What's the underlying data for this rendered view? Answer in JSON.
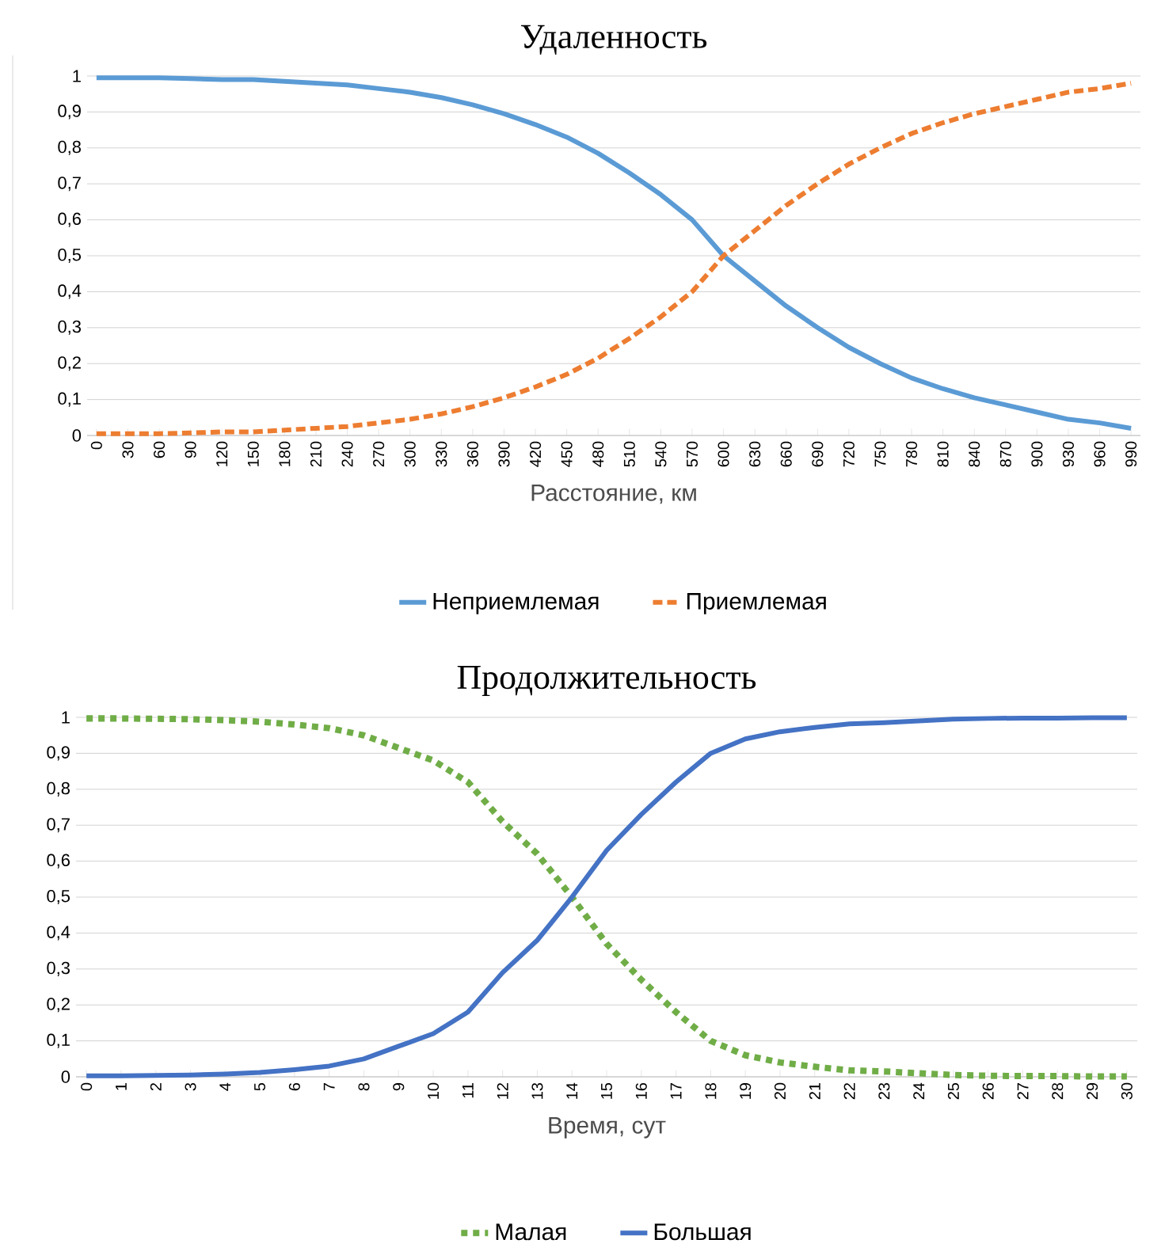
{
  "chart_data": [
    {
      "type": "line",
      "title": "Удаленность",
      "xlabel": "Расстояние, км",
      "categories": [
        "0",
        "30",
        "60",
        "90",
        "120",
        "150",
        "180",
        "210",
        "240",
        "270",
        "300",
        "330",
        "360",
        "390",
        "420",
        "450",
        "480",
        "510",
        "540",
        "570",
        "600",
        "630",
        "660",
        "690",
        "720",
        "750",
        "780",
        "810",
        "840",
        "870",
        "900",
        "930",
        "960",
        "990"
      ],
      "series": [
        {
          "name": "Неприемлемая",
          "color": "#5b9bd5",
          "line_style": "solid",
          "values": [
            0.995,
            0.995,
            0.995,
            0.993,
            0.99,
            0.99,
            0.985,
            0.98,
            0.975,
            0.965,
            0.955,
            0.94,
            0.92,
            0.895,
            0.865,
            0.83,
            0.785,
            0.73,
            0.67,
            0.6,
            0.5,
            0.43,
            0.36,
            0.3,
            0.245,
            0.2,
            0.16,
            0.13,
            0.105,
            0.085,
            0.065,
            0.045,
            0.035,
            0.02
          ]
        },
        {
          "name": "Приемлемая",
          "color": "#ed7d31",
          "line_style": "dashed",
          "values": [
            0.005,
            0.005,
            0.005,
            0.007,
            0.01,
            0.01,
            0.015,
            0.02,
            0.025,
            0.035,
            0.045,
            0.06,
            0.08,
            0.105,
            0.135,
            0.17,
            0.215,
            0.27,
            0.33,
            0.4,
            0.5,
            0.57,
            0.64,
            0.7,
            0.755,
            0.8,
            0.84,
            0.87,
            0.895,
            0.915,
            0.935,
            0.955,
            0.965,
            0.98
          ]
        }
      ],
      "ylim": [
        0,
        1
      ],
      "yticks": [
        0,
        {
          "value": 0.1,
          "label": "0,1"
        },
        {
          "value": 0.2,
          "label": "0,2"
        },
        {
          "value": 0.3,
          "label": "0,3"
        },
        {
          "value": 0.4,
          "label": "0,4"
        },
        {
          "value": 0.5,
          "label": "0,5"
        },
        {
          "value": 0.6,
          "label": "0,6"
        },
        {
          "value": 0.7,
          "label": "0,7"
        },
        {
          "value": 0.8,
          "label": "0,8"
        },
        {
          "value": 0.9,
          "label": "0,9"
        },
        1
      ],
      "grid": "y",
      "legend": "bottom",
      "marker": "none"
    },
    {
      "type": "line",
      "title": "Продолжительность",
      "xlabel": "Время, сут",
      "categories": [
        "0",
        "1",
        "2",
        "3",
        "4",
        "5",
        "6",
        "7",
        "8",
        "9",
        "10",
        "11",
        "12",
        "13",
        "14",
        "15",
        "16",
        "17",
        "18",
        "19",
        "20",
        "21",
        "22",
        "23",
        "24",
        "25",
        "26",
        "27",
        "28",
        "29",
        "30"
      ],
      "series": [
        {
          "name": "Малая",
          "color": "#70ad47",
          "line_style": "dotted",
          "values": [
            0.997,
            0.997,
            0.996,
            0.995,
            0.992,
            0.988,
            0.98,
            0.97,
            0.95,
            0.915,
            0.88,
            0.82,
            0.71,
            0.62,
            0.5,
            0.37,
            0.27,
            0.18,
            0.1,
            0.06,
            0.04,
            0.028,
            0.018,
            0.015,
            0.01,
            0.005,
            0.003,
            0.002,
            0.002,
            0.001,
            0.001
          ]
        },
        {
          "name": "Большая",
          "color": "#4472c4",
          "line_style": "solid",
          "values": [
            0.003,
            0.003,
            0.004,
            0.005,
            0.008,
            0.012,
            0.02,
            0.03,
            0.05,
            0.085,
            0.12,
            0.18,
            0.29,
            0.38,
            0.5,
            0.63,
            0.73,
            0.82,
            0.9,
            0.94,
            0.96,
            0.972,
            0.982,
            0.985,
            0.99,
            0.995,
            0.997,
            0.998,
            0.998,
            0.999,
            0.999
          ]
        }
      ],
      "ylim": [
        0,
        1
      ],
      "yticks": [
        0,
        {
          "value": 0.1,
          "label": "0,1"
        },
        {
          "value": 0.2,
          "label": "0,2"
        },
        {
          "value": 0.3,
          "label": "0,3"
        },
        {
          "value": 0.4,
          "label": "0,4"
        },
        {
          "value": 0.5,
          "label": "0,5"
        },
        {
          "value": 0.6,
          "label": "0,6"
        },
        {
          "value": 0.7,
          "label": "0,7"
        },
        {
          "value": 0.8,
          "label": "0,8"
        },
        {
          "value": 0.9,
          "label": "0,9"
        },
        1
      ],
      "grid": "y",
      "legend": "bottom",
      "marker": "none"
    }
  ]
}
